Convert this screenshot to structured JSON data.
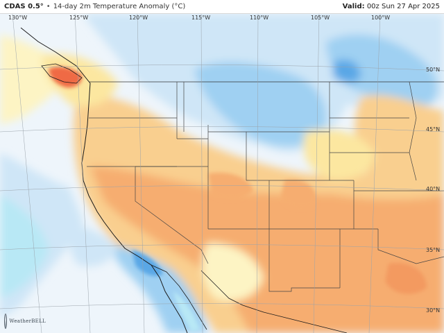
{
  "header": {
    "product": "CDAS 0.5°",
    "separator": "•",
    "description": "14-day 2m Temperature Anomaly (°C)",
    "valid_label": "Valid:",
    "valid_time": "00z Sun 27 Apr 2025"
  },
  "longitudes": [
    "130°W",
    "125°W",
    "120°W",
    "115°W",
    "110°W",
    "105°W",
    "100°W"
  ],
  "latitudes": [
    "50°N",
    "45°N",
    "40°N",
    "35°N",
    "30°N"
  ],
  "logo": {
    "text": "WeatherBELL"
  },
  "colors": {
    "ocean_neutral": "#eef5fb",
    "light_blue": "#cfe6f7",
    "blue": "#9fd0f2",
    "deep_blue": "#5aa7e6",
    "cyan": "#b8e8f5",
    "light_yellow": "#fdf4c4",
    "yellow": "#fce7a0",
    "light_orange": "#f9cf8f",
    "orange": "#f6ad70",
    "red_orange": "#ef6a45"
  }
}
